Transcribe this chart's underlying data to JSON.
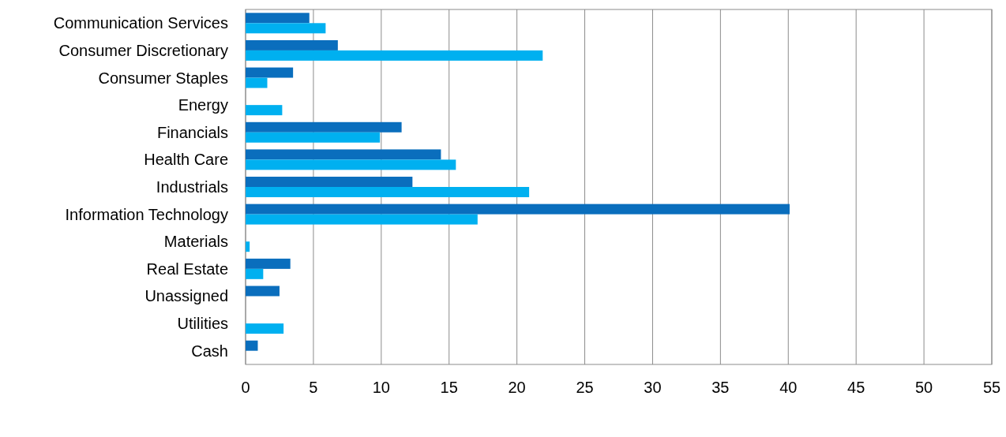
{
  "chart_data": {
    "type": "bar",
    "orientation": "horizontal",
    "categories": [
      "Communication Services",
      "Consumer Discretionary",
      "Consumer Staples",
      "Energy",
      "Financials",
      "Health Care",
      "Industrials",
      "Information Technology",
      "Materials",
      "Real Estate",
      "Unassigned",
      "Utilities",
      "Cash"
    ],
    "series": [
      {
        "color": "#0a6ebd",
        "values": [
          4.7,
          6.8,
          3.5,
          null,
          11.5,
          14.4,
          12.3,
          40.1,
          null,
          3.3,
          2.5,
          null,
          0.9
        ]
      },
      {
        "color": "#00b0f0",
        "values": [
          5.9,
          21.9,
          1.6,
          2.7,
          9.9,
          15.5,
          20.9,
          17.1,
          0.3,
          1.3,
          null,
          2.8,
          null
        ]
      }
    ],
    "xlim": [
      0,
      55
    ],
    "xticks": [
      0,
      5,
      10,
      15,
      20,
      25,
      30,
      35,
      40,
      45,
      50,
      55
    ],
    "grid": "x"
  }
}
